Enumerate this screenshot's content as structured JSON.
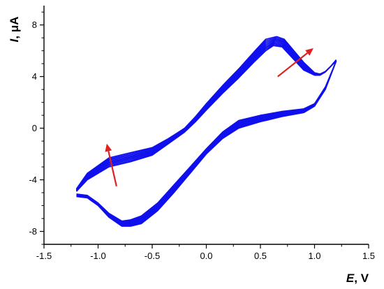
{
  "chart_data": {
    "type": "line",
    "title": "",
    "xlabel": {
      "symbol": "E",
      "unit": ", V"
    },
    "ylabel": {
      "symbol": "I",
      "unit": ", μA"
    },
    "xlim": [
      -1.5,
      1.5
    ],
    "ylim": [
      -9,
      9.5
    ],
    "x_ticks": [
      -1.5,
      -1.0,
      -0.5,
      0.0,
      0.5,
      1.0,
      1.5
    ],
    "x_tick_labels": [
      "-1.5",
      "-1.0",
      "-0.5",
      "0.0",
      "0.5",
      "1.0",
      "1.5"
    ],
    "y_ticks": [
      -8,
      -4,
      0,
      4,
      8
    ],
    "y_tick_labels": [
      "-8",
      "-4",
      "0",
      "4",
      "8"
    ],
    "grid": false,
    "line_color": "#1010ee",
    "arrow_color": "#e02020",
    "series": [
      {
        "values_desc": "forward (anodic) sweep, innermost cycle",
        "x": [
          -1.2,
          -1.1,
          -0.9,
          -0.7,
          -0.5,
          -0.35,
          -0.2,
          -0.1,
          0.0,
          0.15,
          0.3,
          0.45,
          0.55,
          0.62,
          0.7,
          0.8,
          0.9,
          1.0,
          1.05,
          1.1,
          1.15,
          1.2
        ],
        "y": [
          -4.9,
          -4.0,
          -3.0,
          -2.6,
          -2.1,
          -1.2,
          -0.3,
          0.5,
          1.4,
          2.7,
          3.9,
          5.2,
          6.0,
          6.4,
          6.3,
          5.4,
          4.5,
          4.1,
          4.1,
          4.35,
          4.8,
          5.2
        ]
      },
      {
        "values_desc": "forward (anodic) sweep, outermost cycle",
        "x": [
          -1.2,
          -1.1,
          -0.9,
          -0.7,
          -0.5,
          -0.35,
          -0.2,
          -0.1,
          0.0,
          0.15,
          0.3,
          0.45,
          0.55,
          0.65,
          0.72,
          0.8,
          0.9,
          1.0,
          1.05,
          1.1,
          1.15,
          1.2
        ],
        "y": [
          -4.7,
          -3.5,
          -2.3,
          -1.9,
          -1.5,
          -0.8,
          0.0,
          0.9,
          1.9,
          3.3,
          4.6,
          6.0,
          6.9,
          7.1,
          6.9,
          6.1,
          5.1,
          4.3,
          4.2,
          4.4,
          4.8,
          5.3
        ]
      },
      {
        "values_desc": "reverse (cathodic) sweep, lower cycle",
        "x": [
          1.2,
          1.1,
          1.0,
          0.9,
          0.7,
          0.5,
          0.3,
          0.15,
          0.0,
          -0.15,
          -0.3,
          -0.45,
          -0.6,
          -0.7,
          -0.78,
          -0.9,
          -1.0,
          -1.1,
          -1.2
        ],
        "y": [
          5.2,
          3.0,
          1.7,
          1.2,
          0.9,
          0.5,
          0.0,
          -0.8,
          -2.0,
          -3.5,
          -5.0,
          -6.4,
          -7.4,
          -7.6,
          -7.6,
          -6.9,
          -6.0,
          -5.4,
          -5.3
        ]
      },
      {
        "values_desc": "reverse (cathodic) sweep, upper cycle",
        "x": [
          1.2,
          1.1,
          1.0,
          0.9,
          0.7,
          0.5,
          0.3,
          0.15,
          0.0,
          -0.15,
          -0.3,
          -0.45,
          -0.6,
          -0.7,
          -0.78,
          -0.9,
          -1.0,
          -1.1,
          -1.2
        ],
        "y": [
          5.2,
          3.2,
          1.9,
          1.5,
          1.3,
          1.0,
          0.6,
          -0.3,
          -1.6,
          -3.0,
          -4.4,
          -5.8,
          -6.8,
          -7.1,
          -7.2,
          -6.6,
          -5.8,
          -5.2,
          -5.1
        ]
      }
    ],
    "arrows": [
      {
        "from": [
          0.66,
          4.0
        ],
        "to": [
          0.99,
          6.2
        ]
      },
      {
        "from": [
          -0.83,
          -4.5
        ],
        "to": [
          -0.92,
          -1.2
        ]
      }
    ]
  }
}
